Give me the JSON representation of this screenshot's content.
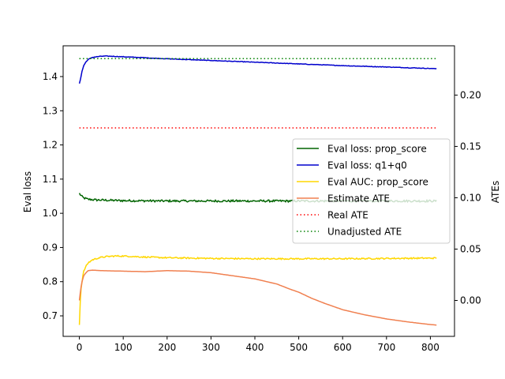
{
  "chart_data": {
    "type": "line",
    "xlabel": "",
    "ylabel_left": "Eval loss",
    "ylabel_right": "ATEs",
    "xlim": [
      -37,
      855
    ],
    "ylim_left": [
      0.64,
      1.49
    ],
    "ylim_right": [
      -0.035,
      0.248
    ],
    "xticks": [
      0,
      100,
      200,
      300,
      400,
      500,
      600,
      700,
      800
    ],
    "yticks_left": [
      0.7,
      0.8,
      0.9,
      1.0,
      1.1,
      1.2,
      1.3,
      1.4
    ],
    "yticks_right": [
      0.0,
      0.05,
      0.1,
      0.15,
      0.2
    ],
    "yticklabels_left": [
      "0.7",
      "0.8",
      "0.9",
      "1.0",
      "1.1",
      "1.2",
      "1.3",
      "1.4"
    ],
    "yticklabels_right": [
      "0.00",
      "0.05",
      "0.10",
      "0.15",
      "0.20"
    ],
    "legend_position": "center-right",
    "series": [
      {
        "name": "Eval loss: prop_score",
        "axis": "left",
        "color": "#006400",
        "style": "solid",
        "noise": 0.003,
        "x": [
          0,
          5,
          10,
          20,
          40,
          100,
          200,
          400,
          600,
          815
        ],
        "y": [
          1.058,
          1.05,
          1.045,
          1.041,
          1.039,
          1.037,
          1.036,
          1.036,
          1.036,
          1.036
        ]
      },
      {
        "name": "Eval loss: q1+q0",
        "axis": "left",
        "color": "#0000cd",
        "style": "solid",
        "noise": 0.0008,
        "x": [
          0,
          3,
          6,
          10,
          15,
          20,
          30,
          45,
          60,
          80,
          100,
          150,
          200,
          300,
          400,
          500,
          600,
          700,
          815
        ],
        "y": [
          1.38,
          1.395,
          1.415,
          1.432,
          1.443,
          1.45,
          1.456,
          1.459,
          1.46,
          1.459,
          1.458,
          1.455,
          1.452,
          1.447,
          1.442,
          1.437,
          1.432,
          1.428,
          1.423
        ]
      },
      {
        "name": "Eval AUC: prop_score",
        "axis": "left",
        "color": "#ffd700",
        "style": "solid",
        "noise": 0.002,
        "x": [
          0,
          2,
          4,
          7,
          10,
          15,
          20,
          30,
          45,
          60,
          80,
          100,
          150,
          200,
          300,
          400,
          500,
          600,
          700,
          815
        ],
        "y": [
          0.675,
          0.74,
          0.78,
          0.81,
          0.83,
          0.845,
          0.855,
          0.864,
          0.87,
          0.873,
          0.875,
          0.875,
          0.872,
          0.87,
          0.868,
          0.867,
          0.867,
          0.867,
          0.868,
          0.869
        ]
      },
      {
        "name": "Estimate ATE",
        "axis": "right",
        "color": "#f08050",
        "style": "solid",
        "noise": 0,
        "x": [
          0,
          3,
          6,
          10,
          15,
          20,
          30,
          50,
          100,
          150,
          200,
          250,
          300,
          350,
          400,
          450,
          480,
          500,
          530,
          560,
          600,
          650,
          700,
          750,
          800,
          815
        ],
        "y": [
          0.0,
          0.011,
          0.018,
          0.024,
          0.027,
          0.029,
          0.0295,
          0.029,
          0.0285,
          0.028,
          0.029,
          0.0285,
          0.027,
          0.024,
          0.021,
          0.016,
          0.011,
          0.008,
          0.002,
          -0.003,
          -0.009,
          -0.014,
          -0.018,
          -0.021,
          -0.0235,
          -0.024
        ]
      },
      {
        "name": "Real ATE",
        "axis": "right",
        "color": "#ff0000",
        "style": "dotted",
        "noise": 0,
        "x": [
          0,
          815
        ],
        "y": [
          0.168,
          0.168
        ]
      },
      {
        "name": "Unadjusted ATE",
        "axis": "right",
        "color": "#008000",
        "style": "dotted",
        "noise": 0,
        "x": [
          0,
          815
        ],
        "y": [
          0.2355,
          0.2355
        ]
      }
    ]
  }
}
